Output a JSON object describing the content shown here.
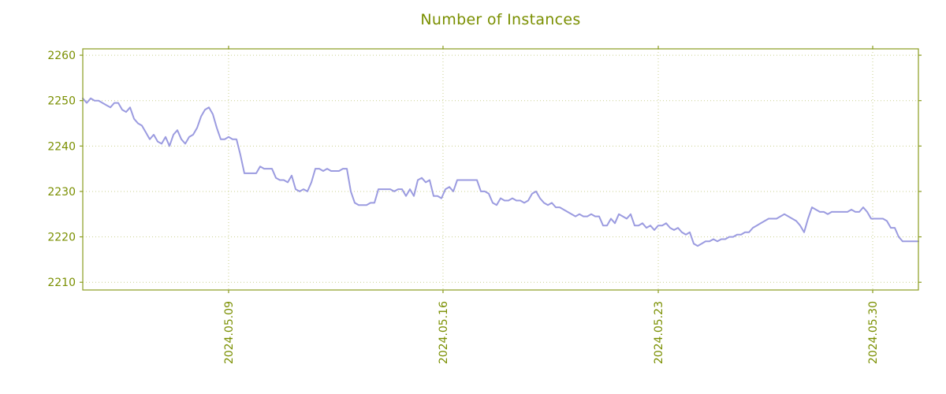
{
  "colors": {
    "text": "#7a8f00",
    "border": "#8a9c1e",
    "grid": "#c9cf8d",
    "line": "#9b9be0",
    "background": "#ffffff"
  },
  "chart_data": {
    "type": "line",
    "title": "Number of Instances",
    "xlabel": "",
    "ylabel": "",
    "grid": true,
    "legend": "none",
    "ylim": [
      2208.3,
      2261.4
    ],
    "y_ticks": [
      2210,
      2220,
      2230,
      2240,
      2250,
      2260
    ],
    "x_ticks": [
      {
        "label": "2024.05.09",
        "pos": 0.1745
      },
      {
        "label": "2024.05.16",
        "pos": 0.4311
      },
      {
        "label": "2024.05.23",
        "pos": 0.6887
      },
      {
        "label": "2024.05.30",
        "pos": 0.9453
      }
    ],
    "series": [
      {
        "name": "instances",
        "values": [
          2250.5,
          2249.5,
          2250.5,
          2250,
          2250,
          2249.5,
          2249,
          2248.5,
          2249.5,
          2249.5,
          2248,
          2247.5,
          2248.5,
          2246,
          2245,
          2244.5,
          2243,
          2241.5,
          2242.5,
          2241,
          2240.5,
          2242,
          2240,
          2242.5,
          2243.5,
          2241.5,
          2240.5,
          2242,
          2242.5,
          2244,
          2246.5,
          2248,
          2248.5,
          2247,
          2244,
          2241.5,
          2241.5,
          2242,
          2241.5,
          2241.5,
          2238,
          2234,
          2234,
          2234,
          2234,
          2235.5,
          2235,
          2235,
          2235,
          2233,
          2232.5,
          2232.5,
          2232,
          2233.5,
          2230.5,
          2230,
          2230.5,
          2230,
          2232,
          2235,
          2235,
          2234.5,
          2235,
          2234.5,
          2234.5,
          2234.5,
          2235,
          2235,
          2230,
          2227.5,
          2227,
          2227,
          2227,
          2227.5,
          2227.5,
          2230.5,
          2230.5,
          2230.5,
          2230.5,
          2230,
          2230.5,
          2230.5,
          2229,
          2230.5,
          2229,
          2232.5,
          2233,
          2232,
          2232.5,
          2229,
          2229,
          2228.5,
          2230.5,
          2231,
          2230,
          2232.5,
          2232.5,
          2232.5,
          2232.5,
          2232.5,
          2232.5,
          2230,
          2230,
          2229.5,
          2227.5,
          2227,
          2228.5,
          2228,
          2228,
          2228.5,
          2228,
          2228,
          2227.5,
          2228,
          2229.5,
          2230,
          2228.5,
          2227.5,
          2227,
          2227.5,
          2226.5,
          2226.5,
          2226,
          2225.5,
          2225,
          2224.5,
          2225,
          2224.5,
          2224.5,
          2225,
          2224.5,
          2224.5,
          2222.5,
          2222.5,
          2224,
          2223,
          2225,
          2224.5,
          2224,
          2225,
          2222.5,
          2222.5,
          2223,
          2222,
          2222.5,
          2221.5,
          2222.5,
          2222.5,
          2223,
          2222,
          2221.5,
          2222,
          2221,
          2220.5,
          2221,
          2218.5,
          2218,
          2218.5,
          2219,
          2219,
          2219.5,
          2219,
          2219.5,
          2219.5,
          2220,
          2220,
          2220.5,
          2220.5,
          2221,
          2221,
          2222,
          2222.5,
          2223,
          2223.5,
          2224,
          2224,
          2224,
          2224.5,
          2225,
          2224.5,
          2224,
          2223.5,
          2222.5,
          2221,
          2224,
          2226.5,
          2226,
          2225.5,
          2225.5,
          2225,
          2225.5,
          2225.5,
          2225.5,
          2225.5,
          2225.5,
          2226,
          2225.5,
          2225.5,
          2226.5,
          2225.5,
          2224,
          2224,
          2224,
          2224,
          2223.5,
          2222,
          2222,
          2220,
          2219,
          2219,
          2219,
          2219,
          2219
        ]
      }
    ]
  }
}
